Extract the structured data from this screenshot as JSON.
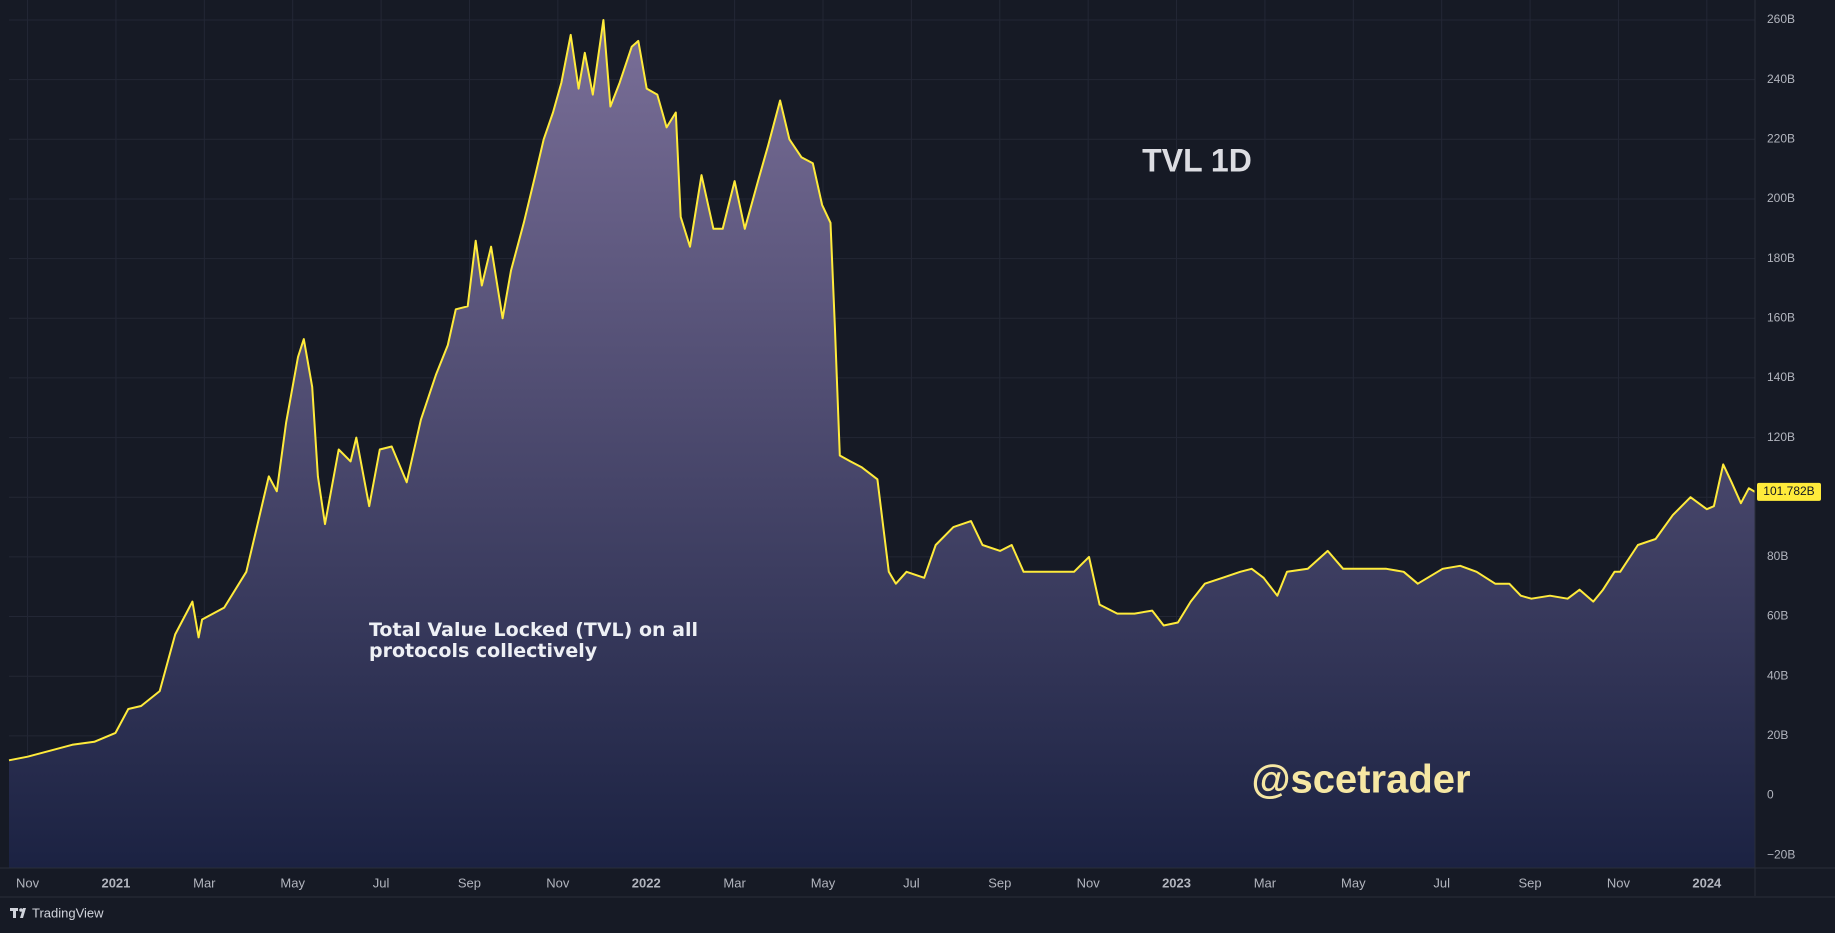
{
  "chart_data": {
    "type": "area",
    "title": "TVL 1D",
    "annotation": "Total Value Locked (TVL) on all protocols collectively",
    "watermark": "@scetrader",
    "brand": "TradingView",
    "color": "#ffeb3b",
    "area_gradient": [
      "#7a6f98",
      "#1b2242"
    ],
    "grid": true,
    "xlim": [
      -0.42,
      39.09
    ],
    "ylim": [
      -24.3,
      266.7
    ],
    "xticks": [
      {
        "value": 0,
        "label": "Nov"
      },
      {
        "value": 2,
        "label": "2021"
      },
      {
        "value": 4,
        "label": "Mar"
      },
      {
        "value": 6,
        "label": "May"
      },
      {
        "value": 8,
        "label": "Jul"
      },
      {
        "value": 10,
        "label": "Sep"
      },
      {
        "value": 12,
        "label": "Nov"
      },
      {
        "value": 14,
        "label": "2022"
      },
      {
        "value": 16,
        "label": "Mar"
      },
      {
        "value": 18,
        "label": "May"
      },
      {
        "value": 20,
        "label": "Jul"
      },
      {
        "value": 22,
        "label": "Sep"
      },
      {
        "value": 24,
        "label": "Nov"
      },
      {
        "value": 26,
        "label": "2023"
      },
      {
        "value": 28,
        "label": "Mar"
      },
      {
        "value": 30,
        "label": "May"
      },
      {
        "value": 32,
        "label": "Jul"
      },
      {
        "value": 34,
        "label": "Sep"
      },
      {
        "value": 36,
        "label": "Nov"
      },
      {
        "value": 38,
        "label": "2024"
      }
    ],
    "yticks": [
      {
        "value": -20,
        "label": "−20B"
      },
      0,
      {
        "value": 20,
        "label": "20B"
      },
      {
        "value": 40,
        "label": "40B"
      },
      {
        "value": 60,
        "label": "60B"
      },
      {
        "value": 80,
        "label": "80B"
      },
      {
        "value": 100,
        "label": "100B"
      },
      {
        "value": 120,
        "label": "120B"
      },
      {
        "value": 140,
        "label": "140B"
      },
      {
        "value": 160,
        "label": "160B"
      },
      {
        "value": 180,
        "label": "180B"
      },
      {
        "value": 200,
        "label": "200B"
      },
      {
        "value": 220,
        "label": "220B"
      },
      {
        "value": 240,
        "label": "240B"
      },
      {
        "value": 260,
        "label": "260B"
      }
    ],
    "last_value": {
      "value": 101.782,
      "label": "101.782B"
    },
    "x": [
      -0.42,
      0,
      0.5,
      1.01,
      1.51,
      1.99,
      2.28,
      2.57,
      2.99,
      3.34,
      3.73,
      3.87,
      3.95,
      4.45,
      4.95,
      5.19,
      5.46,
      5.64,
      5.85,
      6.12,
      6.25,
      6.44,
      6.57,
      6.73,
      7.04,
      7.31,
      7.44,
      7.73,
      7.97,
      8.24,
      8.58,
      8.9,
      9.24,
      9.51,
      9.69,
      9.96,
      10.14,
      10.28,
      10.49,
      10.75,
      10.94,
      11.23,
      11.49,
      11.68,
      11.89,
      12.08,
      12.29,
      12.47,
      12.61,
      12.79,
      13.03,
      13.19,
      13.4,
      13.67,
      13.82,
      14.01,
      14.25,
      14.46,
      14.67,
      14.78,
      14.99,
      15.25,
      15.52,
      15.73,
      16.0,
      16.23,
      16.53,
      16.76,
      17.03,
      17.24,
      17.51,
      17.77,
      17.98,
      18.17,
      18.27,
      18.38,
      18.62,
      18.88,
      19.23,
      19.49,
      19.65,
      19.89,
      20.29,
      20.55,
      20.95,
      21.35,
      21.61,
      22.01,
      22.27,
      22.54,
      22.93,
      23.33,
      23.68,
      24.02,
      24.26,
      24.66,
      25.05,
      25.45,
      25.71,
      26.03,
      26.32,
      26.64,
      27.04,
      27.44,
      27.7,
      27.97,
      28.28,
      28.5,
      28.97,
      29.42,
      29.77,
      29.98,
      30.35,
      30.75,
      31.14,
      31.46,
      32.02,
      32.42,
      32.79,
      33.21,
      33.53,
      33.79,
      34.03,
      34.45,
      34.85,
      35.12,
      35.43,
      35.65,
      35.91,
      36.04,
      36.44,
      36.84,
      37.23,
      37.63,
      38.0,
      38.16,
      38.37,
      38.56,
      38.77,
      38.95,
      39.09
    ],
    "values": [
      11.8,
      13,
      15,
      17,
      18,
      21,
      29,
      30,
      35,
      54,
      65,
      53,
      59,
      63,
      75,
      90,
      107,
      102,
      125,
      147,
      153,
      137,
      107,
      91,
      116,
      112,
      120,
      97,
      116,
      117,
      105,
      126,
      141,
      151,
      163,
      164,
      186,
      171,
      184,
      160,
      176,
      192,
      208,
      220,
      229,
      239,
      255,
      237,
      249,
      235,
      260,
      231,
      239,
      251,
      253,
      237,
      235,
      224,
      229,
      194,
      184,
      208,
      190,
      190,
      206,
      190,
      206,
      218,
      233,
      220,
      214,
      212,
      198,
      192,
      157,
      114,
      112,
      110,
      106,
      75,
      71,
      75,
      73,
      84,
      90,
      92,
      84,
      82,
      84,
      75,
      75,
      75,
      75,
      80,
      64,
      61,
      61,
      62,
      57,
      58,
      65,
      71,
      73,
      75,
      76,
      73,
      67,
      75,
      76,
      82,
      76,
      76,
      76,
      76,
      75,
      71,
      76,
      77,
      75,
      71,
      71,
      67,
      66,
      67,
      66,
      69,
      65,
      69,
      75,
      75,
      84,
      86,
      94,
      100,
      96,
      97,
      111,
      105,
      98,
      103,
      101.782
    ]
  }
}
